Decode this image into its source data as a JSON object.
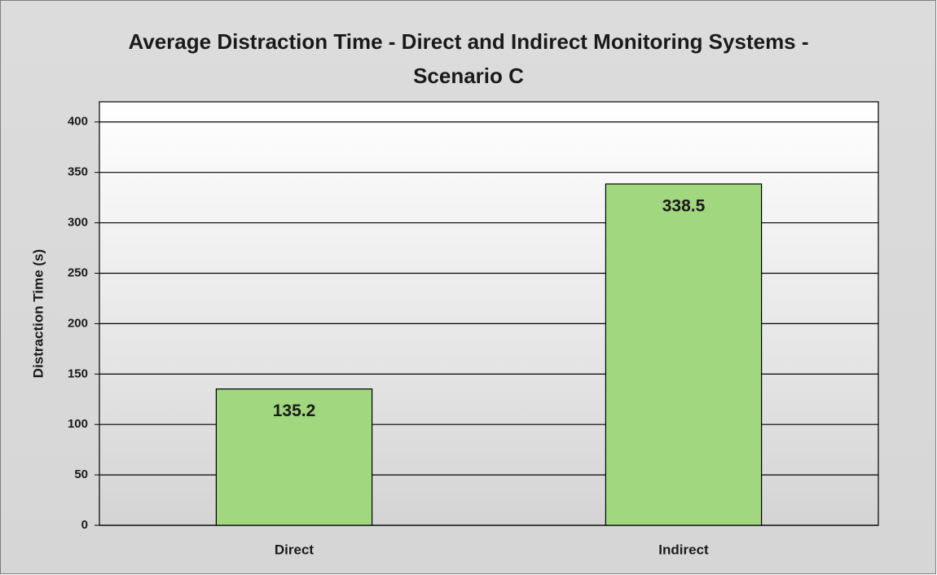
{
  "chart_data": {
    "type": "bar",
    "title": "Average Distraction Time - Direct and Indirect Monitoring Systems - Scenario C",
    "y_label": "Distraction Time (s)",
    "categories": [
      "Direct",
      "Indirect"
    ],
    "values": [
      135.2,
      338.5
    ],
    "color": "#a0d77f",
    "ylim": [
      0,
      420
    ],
    "yticks": [
      0,
      50,
      100,
      150,
      200,
      250,
      300,
      350,
      400
    ],
    "grid": true
  }
}
